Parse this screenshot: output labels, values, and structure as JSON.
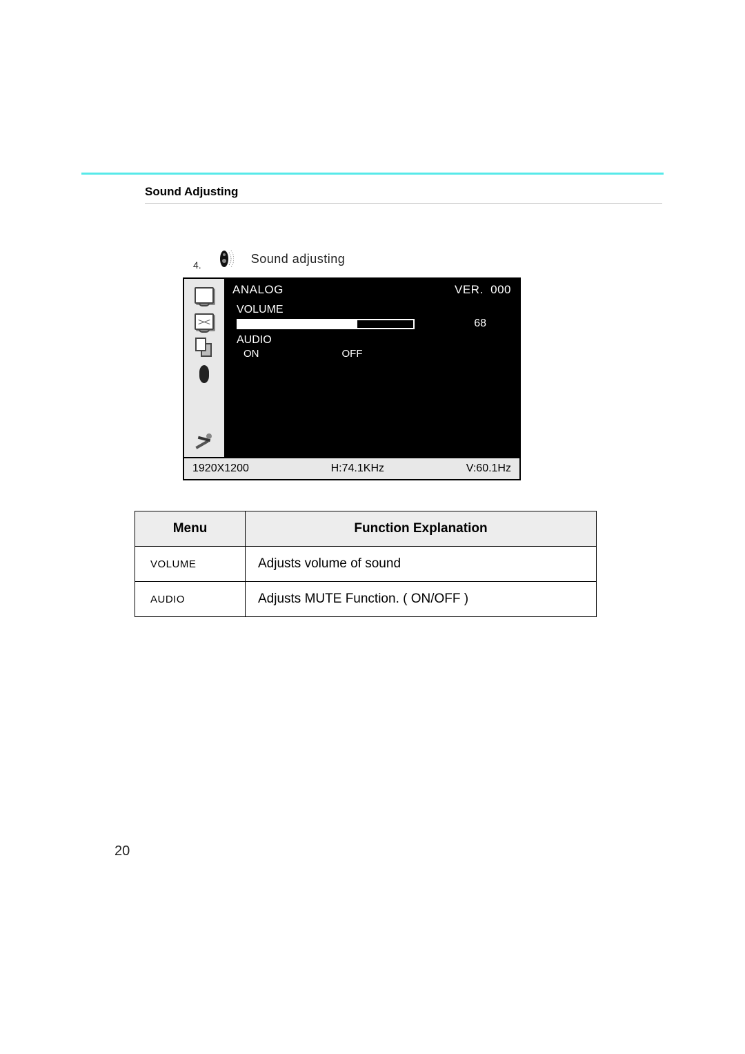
{
  "section": {
    "title": "Sound Adjusting",
    "item_number": "4.",
    "item_label": "Sound adjusting"
  },
  "osd": {
    "signal_type": "ANALOG",
    "version_label": "VER.",
    "version_value": "000",
    "volume": {
      "label": "VOLUME",
      "value": "68",
      "percent": 68
    },
    "audio": {
      "label": "AUDIO",
      "on": "ON",
      "off": "OFF"
    },
    "status": {
      "resolution": "1920X1200",
      "hfreq": "H:74.1KHz",
      "vfreq": "V:60.1Hz"
    }
  },
  "table": {
    "headers": {
      "menu": "Menu",
      "explanation": "Function Explanation"
    },
    "rows": [
      {
        "menu": "VOLUME",
        "explanation": "Adjusts volume of sound"
      },
      {
        "menu": "AUDIO",
        "explanation": "Adjusts MUTE Function. ( ON/OFF )"
      }
    ]
  },
  "page_number": "20"
}
